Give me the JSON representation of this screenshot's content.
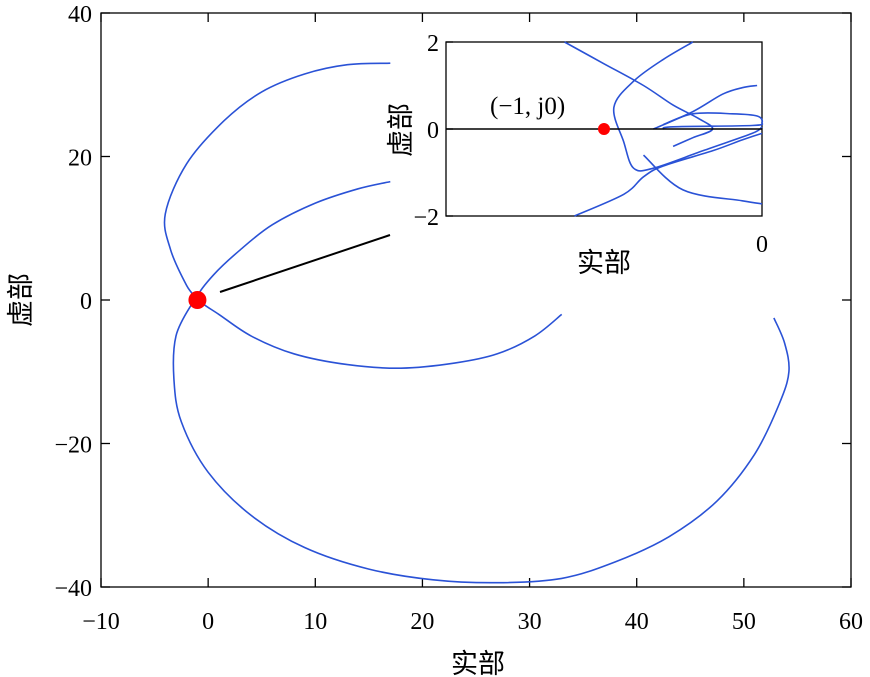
{
  "chart_data": [
    {
      "type": "line",
      "title": "",
      "xlabel": "实部",
      "ylabel": "虚部",
      "xlim": [
        -10,
        60
      ],
      "ylim": [
        -40,
        40
      ],
      "xticks": [
        -10,
        0,
        10,
        20,
        30,
        40,
        50,
        60
      ],
      "yticks": [
        -40,
        -20,
        0,
        20,
        40
      ],
      "xtick_labels": [
        "−10",
        "0",
        "10",
        "20",
        "30",
        "40",
        "50",
        "60"
      ],
      "ytick_labels": [
        "−40",
        "−20",
        "0",
        "20",
        "40"
      ],
      "grid": false,
      "line_color": "#2a52d6",
      "marker_color": "#ff0000",
      "marker_point": {
        "x": -1,
        "y": 0
      },
      "series": [
        {
          "points": [
            [
              17,
              16.5
            ],
            [
              14,
              15.5
            ],
            [
              10,
              13.5
            ],
            [
              6,
              10.5
            ],
            [
              3,
              7
            ],
            [
              0.5,
              3.5
            ],
            [
              -1,
              0.5
            ],
            [
              -0.5,
              -0.5
            ],
            [
              1,
              -2
            ],
            [
              4,
              -5
            ],
            [
              8,
              -7.5
            ],
            [
              13,
              -9
            ],
            [
              18,
              -9.5
            ],
            [
              23,
              -8.8
            ],
            [
              27,
              -7.5
            ],
            [
              30.5,
              -5
            ],
            [
              33,
              -2
            ]
          ]
        },
        {
          "points": [
            [
              17,
              33
            ],
            [
              13,
              32.8
            ],
            [
              9,
              31.5
            ],
            [
              5,
              29
            ],
            [
              1.5,
              25
            ],
            [
              -2,
              19
            ],
            [
              -4,
              12
            ],
            [
              -3.5,
              7
            ],
            [
              -2,
              2
            ],
            [
              -1,
              0
            ],
            [
              -1.5,
              -0.5
            ],
            [
              -3,
              -5
            ],
            [
              -3.2,
              -11
            ],
            [
              -2.5,
              -17
            ],
            [
              0,
              -24
            ],
            [
              4,
              -30
            ],
            [
              9,
              -34.5
            ],
            [
              15,
              -37.5
            ],
            [
              21,
              -39
            ],
            [
              27,
              -39.4
            ],
            [
              33,
              -38.8
            ],
            [
              38,
              -36.5
            ],
            [
              43,
              -33
            ],
            [
              47.5,
              -28
            ],
            [
              51,
              -21.5
            ],
            [
              53.3,
              -14.5
            ],
            [
              54.2,
              -10
            ],
            [
              53.8,
              -6
            ],
            [
              52.8,
              -2.5
            ]
          ]
        }
      ]
    },
    {
      "type": "line",
      "title": "",
      "xlabel": "实部",
      "ylabel": "虚部",
      "xlim": [
        -3.2,
        0
      ],
      "ylim": [
        -2,
        2
      ],
      "xticks": [
        0
      ],
      "yticks": [
        -2,
        0,
        2
      ],
      "xtick_labels": [
        "0"
      ],
      "ytick_labels": [
        "−2",
        "0",
        "2"
      ],
      "grid": false,
      "annotation": "(−1, j0)",
      "series": [
        {
          "points": [
            [
              -2,
              2
            ],
            [
              -1.6,
              1.5
            ],
            [
              -1.2,
              1
            ],
            [
              -0.9,
              0.55
            ],
            [
              -0.65,
              0.25
            ],
            [
              -0.5,
              0
            ],
            [
              -0.7,
              -0.2
            ],
            [
              -0.9,
              -0.4
            ]
          ]
        },
        {
          "points": [
            [
              -0.7,
              2
            ],
            [
              -1,
              1.6
            ],
            [
              -1.3,
              1.1
            ],
            [
              -1.5,
              0.5
            ],
            [
              -1.4,
              -0.3
            ],
            [
              -1.3,
              -0.9
            ],
            [
              -1.1,
              -0.9
            ],
            [
              -0.6,
              -0.5
            ],
            [
              -0.1,
              -0.1
            ],
            [
              0,
              0.05
            ]
          ]
        },
        {
          "points": [
            [
              -1.1,
              0
            ],
            [
              -0.7,
              0.4
            ],
            [
              -0.4,
              0.8
            ],
            [
              -0.2,
              0.95
            ],
            [
              -0.05,
              1
            ]
          ]
        },
        {
          "points": [
            [
              -1.9,
              -2
            ],
            [
              -1.4,
              -1.5
            ],
            [
              -1.2,
              -1.1
            ],
            [
              -1.0,
              -0.85
            ],
            [
              -0.5,
              -0.5
            ],
            [
              -0.2,
              -0.25
            ],
            [
              0,
              -0.1
            ]
          ]
        },
        {
          "points": [
            [
              -1.2,
              -0.6
            ],
            [
              -0.8,
              -1.4
            ],
            [
              -0.2,
              -1.65
            ],
            [
              0,
              -1.72
            ]
          ]
        },
        {
          "points": [
            [
              -1.0,
              0.1
            ],
            [
              -0.7,
              0.35
            ],
            [
              -0.3,
              0.35
            ],
            [
              -0.05,
              0.3
            ],
            [
              0,
              0.15
            ],
            [
              -0.1,
              0.08
            ],
            [
              -0.9,
              0.05
            ],
            [
              -1,
              0
            ]
          ]
        }
      ]
    }
  ]
}
